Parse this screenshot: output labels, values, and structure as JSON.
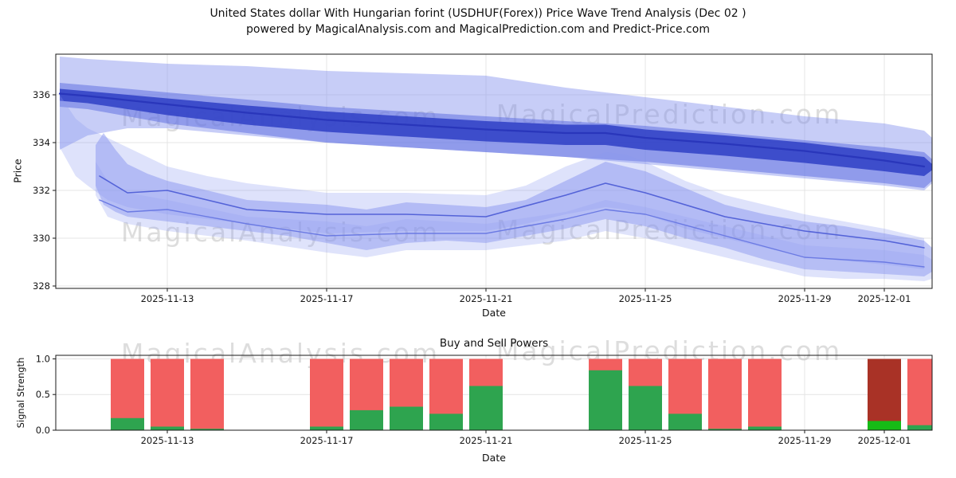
{
  "title": {
    "line1": "United States dollar With Hungarian forint (USDHUF(Forex)) Price Wave Trend Analysis (Dec 02 )",
    "line2": "powered by MagicalAnalysis.com and MagicalPrediction.com and Predict-Price.com"
  },
  "watermarks": [
    "MagicalAnalysis.com",
    "MagicalPrediction.com"
  ],
  "chart_data": [
    {
      "name": "price-wave-trend",
      "type": "area",
      "title": "",
      "xlabel": "Date",
      "ylabel": "Price",
      "ylim": [
        327.9,
        337.7
      ],
      "yticks": [
        328,
        330,
        332,
        334,
        336
      ],
      "day_zero": "2025-11-11",
      "xlim_days": [
        -0.8,
        21.2
      ],
      "xticks": [
        {
          "day": 2,
          "label": "2025-11-13"
        },
        {
          "day": 6,
          "label": "2025-11-17"
        },
        {
          "day": 10,
          "label": "2025-11-21"
        },
        {
          "day": 14,
          "label": "2025-11-25"
        },
        {
          "day": 18,
          "label": "2025-11-29"
        },
        {
          "day": 20,
          "label": "2025-12-01"
        }
      ],
      "grid": true,
      "bands": [
        {
          "name": "upper-envelope",
          "color": "#8290ee",
          "opacity": 0.45,
          "x": [
            -0.7,
            0,
            1,
            2,
            4,
            6,
            8,
            10,
            12,
            14,
            16,
            18,
            19,
            20,
            21,
            21.2
          ],
          "upper": [
            337.6,
            337.5,
            337.4,
            337.3,
            337.2,
            337.0,
            336.9,
            336.8,
            336.3,
            335.9,
            335.5,
            335.1,
            334.95,
            334.8,
            334.5,
            334.2
          ],
          "lower": [
            333.7,
            334.3,
            334.6,
            334.6,
            334.3,
            334.0,
            333.8,
            333.6,
            333.4,
            333.1,
            332.8,
            332.5,
            332.35,
            332.2,
            332.0,
            332.3
          ]
        },
        {
          "name": "upper-mid-band",
          "color": "#5a69e0",
          "opacity": 0.5,
          "x": [
            -0.7,
            0,
            2,
            4,
            6,
            8,
            10,
            12,
            14,
            16,
            18,
            20,
            21,
            21.2
          ],
          "upper": [
            336.5,
            336.4,
            336.1,
            335.8,
            335.5,
            335.3,
            335.1,
            334.9,
            334.7,
            334.4,
            334.1,
            333.8,
            333.6,
            333.3
          ],
          "lower": [
            335.5,
            335.4,
            334.8,
            334.4,
            334.0,
            333.8,
            333.6,
            333.4,
            333.2,
            332.9,
            332.6,
            332.3,
            332.1,
            332.4
          ]
        },
        {
          "name": "upper-dark-band",
          "color": "#2f3fc6",
          "opacity": 0.85,
          "x": [
            -0.7,
            0,
            2,
            4,
            6,
            8,
            10,
            12,
            13,
            14,
            16,
            18,
            20,
            21,
            21.2
          ],
          "upper": [
            336.25,
            336.15,
            335.85,
            335.55,
            335.3,
            335.1,
            334.9,
            334.75,
            334.75,
            334.55,
            334.3,
            334.0,
            333.6,
            333.4,
            333.1
          ],
          "lower": [
            335.75,
            335.65,
            335.15,
            334.75,
            334.45,
            334.25,
            334.05,
            333.9,
            333.9,
            333.7,
            333.45,
            333.15,
            332.8,
            332.6,
            332.85
          ]
        },
        {
          "name": "mid-connector-band",
          "color": "#8a97ef",
          "opacity": 0.28,
          "x": [
            -0.7,
            -0.3,
            0,
            0.5,
            1,
            2,
            3,
            4,
            6,
            8,
            10,
            11,
            12,
            13,
            13.5,
            14,
            15,
            16,
            18,
            20,
            21
          ],
          "upper": [
            336.0,
            335.0,
            334.6,
            334.2,
            333.8,
            333.0,
            332.6,
            332.3,
            331.9,
            331.9,
            331.8,
            332.2,
            333.0,
            333.6,
            333.5,
            333.2,
            332.4,
            331.8,
            331.0,
            330.4,
            330.0
          ],
          "lower": [
            333.8,
            332.6,
            332.2,
            331.6,
            331.3,
            331.0,
            330.8,
            330.6,
            330.2,
            330.3,
            330.3,
            330.6,
            331.0,
            331.3,
            331.2,
            331.0,
            330.4,
            330.0,
            329.2,
            328.9,
            328.7
          ]
        },
        {
          "name": "lower-main-band",
          "color": "#7e8cee",
          "opacity": 0.45,
          "x": [
            0.2,
            0.4,
            0.7,
            1,
            1.5,
            2,
            3,
            4,
            5,
            6,
            7,
            8,
            9,
            10,
            11,
            12,
            13,
            14,
            15,
            16,
            17,
            18,
            19,
            20,
            21,
            21.2
          ],
          "upper": [
            333.9,
            334.4,
            333.7,
            333.1,
            332.7,
            332.4,
            332.0,
            331.6,
            331.5,
            331.4,
            331.2,
            331.5,
            331.4,
            331.3,
            331.6,
            332.4,
            333.2,
            332.8,
            332.1,
            331.4,
            331.0,
            330.7,
            330.5,
            330.2,
            329.9,
            329.6
          ],
          "lower": [
            332.2,
            331.4,
            331.1,
            330.9,
            330.8,
            330.7,
            330.5,
            330.3,
            330.1,
            329.8,
            329.5,
            329.8,
            329.9,
            329.8,
            330.1,
            330.4,
            330.8,
            330.5,
            330.0,
            329.6,
            329.1,
            328.7,
            328.6,
            328.5,
            328.4,
            328.6
          ]
        },
        {
          "name": "lower-envelope",
          "color": "#95a2f1",
          "opacity": 0.3,
          "x": [
            0.2,
            0.5,
            1,
            2,
            4,
            6,
            7,
            8,
            10,
            12,
            13,
            14,
            16,
            17,
            18,
            19,
            20,
            21,
            21.2
          ],
          "upper": [
            333.2,
            332.4,
            331.9,
            331.6,
            330.9,
            330.7,
            330.5,
            330.8,
            330.6,
            331.1,
            331.6,
            331.3,
            330.5,
            330.1,
            329.7,
            329.6,
            329.5,
            329.3,
            329.1
          ],
          "lower": [
            331.8,
            330.9,
            330.6,
            330.3,
            329.9,
            329.4,
            329.2,
            329.5,
            329.5,
            329.9,
            330.3,
            330.0,
            329.2,
            328.8,
            328.4,
            328.3,
            328.3,
            328.2,
            328.3
          ]
        }
      ],
      "lines": [
        {
          "name": "upper-trend-line",
          "color": "#2936bb",
          "width": 2.2,
          "x": [
            -0.7,
            0,
            2,
            4,
            6,
            8,
            10,
            12,
            13,
            14,
            16,
            18,
            20,
            21
          ],
          "y": [
            336.05,
            335.95,
            335.6,
            335.25,
            334.95,
            334.75,
            334.55,
            334.4,
            334.4,
            334.2,
            333.95,
            333.65,
            333.25,
            333.0
          ]
        },
        {
          "name": "mid-trend-line",
          "color": "#5463d8",
          "width": 1.6,
          "x": [
            0.3,
            1,
            2,
            3,
            4,
            6,
            8,
            10,
            12,
            13,
            14,
            16,
            18,
            20,
            21
          ],
          "y": [
            332.6,
            331.9,
            332.0,
            331.6,
            331.2,
            331.0,
            331.0,
            330.9,
            331.8,
            332.3,
            331.9,
            330.9,
            330.3,
            329.9,
            329.6
          ]
        },
        {
          "name": "lower-trend-line",
          "color": "#6b7ae3",
          "width": 1.4,
          "x": [
            0.3,
            1,
            2,
            4,
            6,
            8,
            10,
            12,
            13,
            14,
            16,
            18,
            20,
            21
          ],
          "y": [
            331.6,
            331.1,
            331.2,
            330.6,
            330.1,
            330.2,
            330.2,
            330.8,
            331.2,
            331.0,
            330.1,
            329.2,
            329.0,
            328.8
          ]
        }
      ]
    },
    {
      "name": "buy-sell-powers",
      "type": "bar",
      "title": "Buy and Sell Powers",
      "xlabel": "Date",
      "ylabel": "Signal Strength",
      "ylim": [
        0,
        1.05
      ],
      "yticks": [
        {
          "v": 0,
          "label": "0.0"
        },
        {
          "v": 0.5,
          "label": "0.5"
        },
        {
          "v": 1,
          "label": "1.0"
        }
      ],
      "xticks": [
        {
          "day": 2,
          "label": "2025-11-13"
        },
        {
          "day": 6,
          "label": "2025-11-17"
        },
        {
          "day": 10,
          "label": "2025-11-21"
        },
        {
          "day": 14,
          "label": "2025-11-25"
        },
        {
          "day": 18,
          "label": "2025-11-29"
        },
        {
          "day": 20,
          "label": "2025-12-01"
        }
      ],
      "bar_width_days": 0.84,
      "colors": {
        "sell": "#f25f5f",
        "buy": "#2ea44f",
        "sell_dark": "#a93226",
        "buy_bright": "#16bb16"
      },
      "bars": [
        {
          "date": "2025-11-12",
          "day": 1,
          "sell": 1.0,
          "buy": 0.17
        },
        {
          "date": "2025-11-13",
          "day": 2,
          "sell": 1.0,
          "buy": 0.05
        },
        {
          "date": "2025-11-14",
          "day": 3,
          "sell": 1.0,
          "buy": 0.02
        },
        {
          "date": "2025-11-17",
          "day": 6,
          "sell": 1.0,
          "buy": 0.05
        },
        {
          "date": "2025-11-18",
          "day": 7,
          "sell": 1.0,
          "buy": 0.28
        },
        {
          "date": "2025-11-19",
          "day": 8,
          "sell": 1.0,
          "buy": 0.33
        },
        {
          "date": "2025-11-20",
          "day": 9,
          "sell": 1.0,
          "buy": 0.23
        },
        {
          "date": "2025-11-21",
          "day": 10,
          "sell": 1.0,
          "buy": 0.62
        },
        {
          "date": "2025-11-24",
          "day": 13,
          "sell": 1.0,
          "buy": 0.84
        },
        {
          "date": "2025-11-25",
          "day": 14,
          "sell": 1.0,
          "buy": 0.62
        },
        {
          "date": "2025-11-26",
          "day": 15,
          "sell": 1.0,
          "buy": 0.23
        },
        {
          "date": "2025-11-27",
          "day": 16,
          "sell": 1.0,
          "buy": 0.02
        },
        {
          "date": "2025-11-28",
          "day": 17,
          "sell": 1.0,
          "buy": 0.05
        },
        {
          "date": "2025-12-01",
          "day": 20,
          "sell": 1.0,
          "buy": 0.13,
          "sell_color": "#a93226",
          "buy_color": "#16bb16"
        },
        {
          "date": "2025-12-02",
          "day": 21,
          "sell": 1.0,
          "buy": 0.07
        }
      ]
    }
  ]
}
